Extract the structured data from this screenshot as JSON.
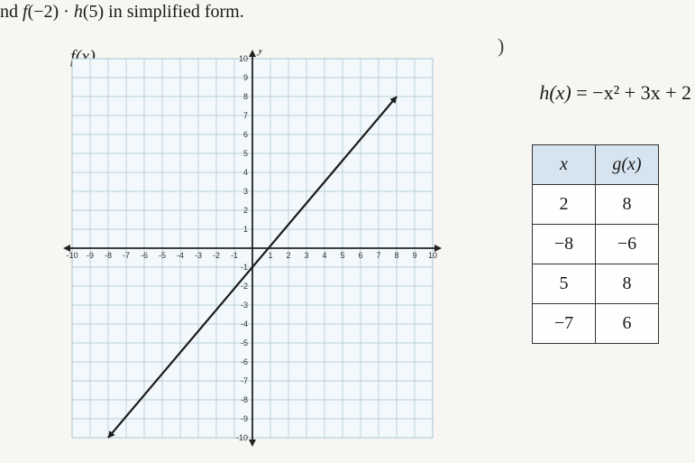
{
  "prompt": {
    "prefix": "nd ",
    "f_open": "f",
    "f_arg": "(−2)",
    "dot": " · ",
    "h_open": "h",
    "h_arg": "(5)",
    "suffix": " in simplified form."
  },
  "fx_label": "f(x)",
  "hx_equation": {
    "lhs": "h(x)",
    "rhs": " = −x² + 3x + 2"
  },
  "g_table": {
    "header_x": "x",
    "header_gx": "g(x)",
    "rows": [
      {
        "x": "2",
        "gx": "8"
      },
      {
        "x": "−8",
        "gx": "−6"
      },
      {
        "x": "5",
        "gx": "8"
      },
      {
        "x": "−7",
        "gx": "6"
      }
    ]
  },
  "graph": {
    "type": "line",
    "xlim": [
      -10,
      10
    ],
    "ylim": [
      -10,
      10
    ],
    "xtick_step": 1,
    "ytick_step": 1,
    "background_color": "#f2f8fb",
    "grid_color": "#a6c4d0",
    "axis_color": "#222222",
    "line_color": "#1a1a1a",
    "line_width": 2.2,
    "line_points": [
      [
        -8,
        -10
      ],
      [
        8,
        8
      ]
    ],
    "x_axis_label": "x",
    "y_axis_label": "y",
    "tick_label_fontsize": 9,
    "tick_label_color": "#333333",
    "x_tick_labels": [
      "-10",
      "-9",
      "-8",
      "-7",
      "-6",
      "-5",
      "-4",
      "-3",
      "-2",
      "-1",
      "",
      "1",
      "2",
      "3",
      "4",
      "5",
      "6",
      "7",
      "8",
      "9",
      "10"
    ],
    "y_tick_labels_pos": [
      "1",
      "2",
      "3",
      "4",
      "5",
      "6",
      "7",
      "8",
      "9",
      "10"
    ],
    "y_tick_labels_neg": [
      "-1",
      "-2",
      "-3",
      "-4",
      "-5",
      "-6",
      "-7",
      "-8",
      "-9",
      "-10"
    ]
  }
}
